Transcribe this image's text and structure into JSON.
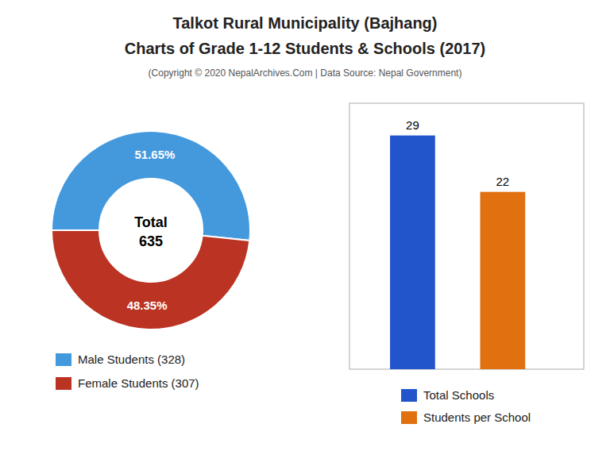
{
  "title": "Talkot Rural Municipality (Bajhang)",
  "subtitle": "Charts of Grade 1-12 Students & Schools (2017)",
  "annotations": [
    "(Copyright © 2020 NepalArchives.Com | Data Source: Nepal Government)"
  ],
  "chart_data": [
    {
      "type": "pie",
      "categories": [
        "Male Students (328)",
        "Female Students (307)"
      ],
      "values": [
        51.65,
        48.35
      ],
      "value_labels": [
        "51.65%",
        "48.35%"
      ],
      "colors": [
        "#4499dd",
        "#bb3322"
      ],
      "data_labels": true,
      "annotations": [
        "Total",
        "635"
      ],
      "legend": "bottom"
    },
    {
      "type": "bar",
      "categories": [
        "Total Schools",
        "Students per School"
      ],
      "values": [
        29,
        22
      ],
      "colors": [
        "#2255cc",
        "#e07010"
      ],
      "ylim": [
        0,
        33
      ],
      "data_labels": true,
      "tick_labels": false,
      "legend": "bottom"
    }
  ]
}
